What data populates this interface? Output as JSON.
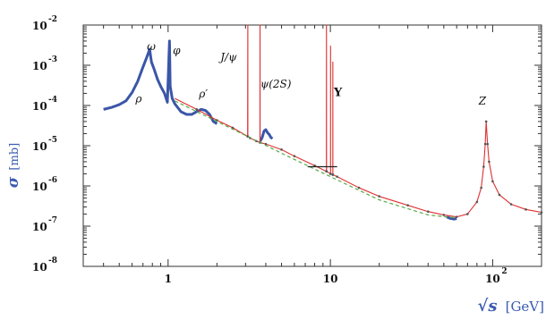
{
  "chart_data": {
    "type": "line",
    "xscale": "log",
    "yscale": "log",
    "xlim": [
      0.3,
      200
    ],
    "ylim": [
      1e-08,
      0.01
    ],
    "xlabel": {
      "symbol": "√s",
      "unit": "[GeV]"
    },
    "ylabel": {
      "symbol": "σ",
      "unit": "[mb]"
    },
    "x_ticks": [
      {
        "value": 1,
        "base": "1",
        "exp": ""
      },
      {
        "value": 10,
        "base": "10",
        "exp": ""
      },
      {
        "value": 100,
        "base": "10",
        "exp": "2"
      }
    ],
    "y_ticks": [
      {
        "value": 0.01,
        "base": "10",
        "exp": "-2"
      },
      {
        "value": 0.001,
        "base": "10",
        "exp": "-3"
      },
      {
        "value": 0.0001,
        "base": "10",
        "exp": "-4"
      },
      {
        "value": 1e-05,
        "base": "10",
        "exp": "-5"
      },
      {
        "value": 1e-06,
        "base": "10",
        "exp": "-6"
      },
      {
        "value": 1e-07,
        "base": "10",
        "exp": "-7"
      },
      {
        "value": 1e-08,
        "base": "10",
        "exp": "-8"
      }
    ],
    "annotations": [
      {
        "label": "ρ",
        "x": 0.63,
        "y": 0.00012
      },
      {
        "label": "ω",
        "x": 0.74,
        "y": 0.0024
      },
      {
        "label": "φ",
        "x": 1.07,
        "y": 0.0019
      },
      {
        "label": "ρ′",
        "x": 1.55,
        "y": 0.00016
      },
      {
        "label": "J/ψ",
        "x": 2.1,
        "y": 0.0013
      },
      {
        "label": "ψ(2S)",
        "x": 3.7,
        "y": 0.00028
      },
      {
        "label": "Υ",
        "x": 10.5,
        "y": 0.00017
      },
      {
        "label": "Z",
        "x": 82,
        "y": 0.000105
      }
    ],
    "series": [
      {
        "role": "measured",
        "color": "#3a56a8",
        "x": [
          0.4,
          0.45,
          0.5,
          0.55,
          0.6,
          0.65,
          0.7,
          0.74,
          0.77,
          0.78,
          0.79,
          0.82,
          0.86,
          0.9,
          0.95,
          0.99,
          1.01,
          1.02,
          1.03,
          1.06,
          1.1,
          1.2,
          1.3,
          1.4,
          1.5,
          1.6,
          1.7,
          1.8,
          1.9,
          2.0
        ],
        "y": [
          8e-05,
          9e-05,
          0.000105,
          0.00013,
          0.00021,
          0.0004,
          0.0009,
          0.0016,
          0.0025,
          0.0017,
          0.0012,
          0.0008,
          0.00045,
          0.0003,
          0.0002,
          0.00012,
          0.0013,
          0.004,
          0.0003,
          0.00015,
          0.00011,
          7e-05,
          6e-05,
          6e-05,
          7e-05,
          8e-05,
          7.5e-05,
          6e-05,
          4e-05,
          3.5e-05
        ]
      },
      {
        "role": "measured",
        "color": "#3a56a8",
        "x": [
          3.7,
          3.8,
          3.9,
          4.0,
          4.1,
          4.2,
          4.3,
          4.4
        ],
        "y": [
          1.3e-05,
          1.6e-05,
          2.3e-05,
          2.5e-05,
          2.1e-05,
          1.9e-05,
          1.6e-05,
          1.5e-05
        ]
      },
      {
        "role": "measured",
        "color": "#3a56a8",
        "x": [
          52,
          55,
          58,
          60
        ],
        "y": [
          1.7e-07,
          1.55e-07,
          1.5e-07,
          1.55e-07
        ]
      },
      {
        "role": "model",
        "color": "#e03030",
        "x": [
          1.1,
          1.5,
          2,
          2.5,
          3.09,
          3.1,
          3.101,
          3.2,
          3.5,
          3.68,
          3.686,
          3.69,
          4,
          5,
          6,
          8,
          9.45,
          9.46,
          9.47,
          10.02,
          10.023,
          10.03,
          10.35,
          10.355,
          10.36,
          11,
          15,
          20,
          30,
          40,
          50,
          60,
          70,
          80,
          85,
          88,
          90,
          91.19,
          93,
          95,
          100,
          110,
          130,
          160,
          200
        ],
        "y": [
          0.00015,
          8e-05,
          4.3e-05,
          2.8e-05,
          1.7e-05,
          0.01,
          1.7e-05,
          1.55e-05,
          1.3e-05,
          1.2e-05,
          0.01,
          1.2e-05,
          1.1e-05,
          8e-06,
          5.5e-06,
          3.2e-06,
          2.3e-06,
          0.01,
          2.3e-06,
          2e-06,
          0.003,
          2e-06,
          1.9e-06,
          0.0012,
          1.9e-06,
          1.7e-06,
          9e-07,
          5.5e-07,
          3.3e-07,
          2.3e-07,
          1.9e-07,
          1.7e-07,
          2e-07,
          4e-07,
          9e-07,
          3e-06,
          1.1e-05,
          4e-05,
          1.1e-05,
          4e-06,
          1.3e-06,
          6e-07,
          3.5e-07,
          2.6e-07,
          2.2e-07
        ]
      },
      {
        "role": "model-dashed",
        "color": "#55aa44",
        "x": [
          1.1,
          2,
          3,
          5,
          10,
          20,
          40,
          60
        ],
        "y": [
          0.00013,
          4e-05,
          1.8e-05,
          6.5e-06,
          1.7e-06,
          4.5e-07,
          1.9e-07,
          1.6e-07
        ]
      }
    ],
    "markers": [
      {
        "x": 10.6,
        "y": 3e-06,
        "style": "bar"
      }
    ]
  }
}
